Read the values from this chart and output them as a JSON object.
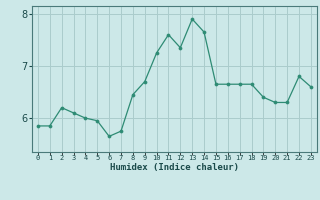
{
  "x": [
    0,
    1,
    2,
    3,
    4,
    5,
    6,
    7,
    8,
    9,
    10,
    11,
    12,
    13,
    14,
    15,
    16,
    17,
    18,
    19,
    20,
    21,
    22,
    23
  ],
  "y": [
    5.85,
    5.85,
    6.2,
    6.1,
    6.0,
    5.95,
    5.65,
    5.75,
    6.45,
    6.7,
    7.25,
    7.6,
    7.35,
    7.9,
    7.65,
    6.65,
    6.65,
    6.65,
    6.65,
    6.4,
    6.3,
    6.3,
    6.8,
    6.6
  ],
  "line_color": "#2e8b74",
  "marker_color": "#2e8b74",
  "bg_color": "#cce8e8",
  "grid_color": "#aacccc",
  "axis_label_color": "#1a4a4a",
  "tick_color": "#1a4a4a",
  "xlabel": "Humidex (Indice chaleur)",
  "ylim": [
    5.35,
    8.15
  ],
  "yticks": [
    6,
    7,
    8
  ],
  "xtick_labels": [
    "0",
    "1",
    "2",
    "3",
    "4",
    "5",
    "6",
    "7",
    "8",
    "9",
    "10",
    "11",
    "12",
    "13",
    "14",
    "15",
    "16",
    "17",
    "18",
    "19",
    "20",
    "21",
    "22",
    "23"
  ]
}
